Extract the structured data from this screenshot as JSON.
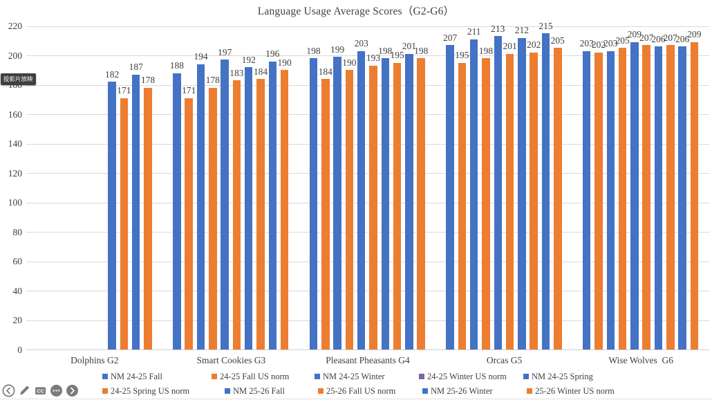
{
  "chart_data": {
    "type": "bar",
    "title": "Language Usage Average Scores（G2-G6）",
    "categories": [
      "Dolphins G2",
      "Smart Cookies G3",
      "Pleasant Pheasants G4",
      "Orcas G5",
      "Wise Wolves  G6"
    ],
    "series": [
      {
        "name": "NM 24-25 Fall",
        "bar_color": "#4472C4",
        "legend_color": "#4472C4",
        "values": [
          null,
          188,
          198,
          207,
          203
        ]
      },
      {
        "name": "24-25 Fall US norm",
        "bar_color": "#ED7D31",
        "legend_color": "#ED7D31",
        "values": [
          null,
          171,
          184,
          195,
          202
        ]
      },
      {
        "name": "NM 24-25 Winter",
        "bar_color": "#4472C4",
        "legend_color": "#4472C4",
        "values": [
          null,
          194,
          199,
          211,
          203
        ]
      },
      {
        "name": "24-25 Winter US norm",
        "bar_color": "#ED7D31",
        "legend_color": "#8064A2",
        "values": [
          null,
          178,
          190,
          198,
          205
        ]
      },
      {
        "name": "NM 24-25 Spring",
        "bar_color": "#4472C4",
        "legend_color": "#4472C4",
        "values": [
          null,
          197,
          203,
          213,
          209
        ]
      },
      {
        "name": "24-25 Spring US norm",
        "bar_color": "#ED7D31",
        "legend_color": "#ED7D31",
        "values": [
          null,
          183,
          193,
          201,
          207
        ]
      },
      {
        "name": "NM 25-26 Fall",
        "bar_color": "#4472C4",
        "legend_color": "#4472C4",
        "values": [
          182,
          192,
          198,
          212,
          206
        ]
      },
      {
        "name": "25-26 Fall US norm",
        "bar_color": "#ED7D31",
        "legend_color": "#ED7D31",
        "values": [
          171,
          184,
          195,
          202,
          207
        ]
      },
      {
        "name": "NM 25-26 Winter",
        "bar_color": "#4472C4",
        "legend_color": "#4472C4",
        "values": [
          187,
          196,
          201,
          215,
          206
        ]
      },
      {
        "name": "25-26 Winter US norm",
        "bar_color": "#ED7D31",
        "legend_color": "#ED7D31",
        "values": [
          178,
          190,
          198,
          205,
          209
        ]
      }
    ],
    "ylim": [
      0,
      220
    ],
    "y_tick_step": 20,
    "y_tick_labels": [
      "0",
      "20",
      "40",
      "60",
      "80",
      "100",
      "120",
      "140",
      "160",
      "180",
      "200",
      "220"
    ],
    "grid": true,
    "legend_position": "bottom",
    "legend_rows": [
      [
        0,
        1,
        2,
        3,
        4
      ],
      [
        5,
        6,
        7,
        8,
        9
      ]
    ]
  },
  "colors": {
    "bar_blue": "#4472C4",
    "bar_orange": "#ED7D31",
    "legend_purple": "#8064A2",
    "gridline": "#D9D9D9",
    "text": "#404040"
  },
  "overlay": {
    "slideshow_tooltip": "投影片放映"
  },
  "presenter_controls": [
    {
      "name": "previous-slide"
    },
    {
      "name": "pen-tools"
    },
    {
      "name": "closed-captions",
      "label": "CC"
    },
    {
      "name": "more-options"
    },
    {
      "name": "next-slide"
    }
  ]
}
